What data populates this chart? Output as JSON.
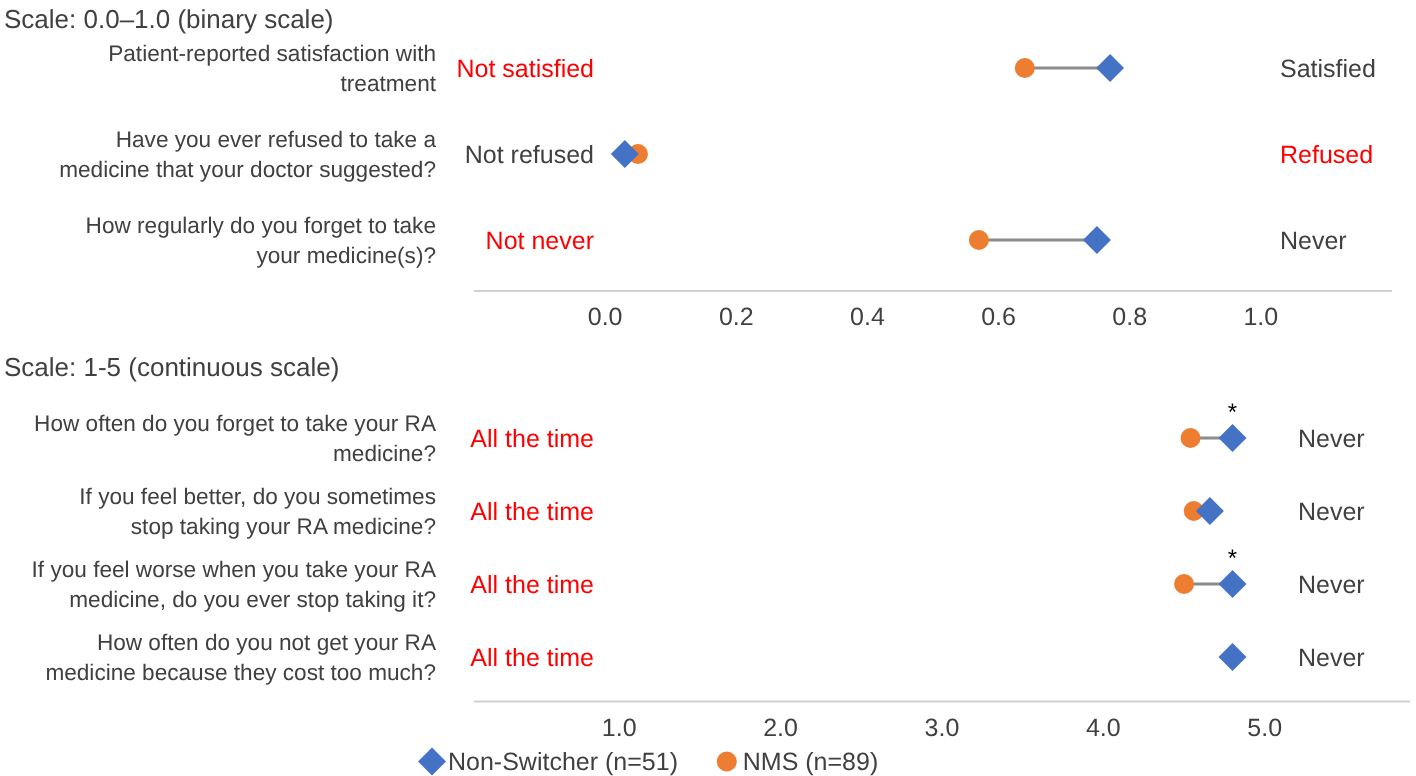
{
  "chart_data": [
    {
      "type": "scatter",
      "orientation": "horizontal",
      "title": "Scale: 0.0–1.0 (binary scale)",
      "categories": [
        "Patient-reported satisfaction with treatment",
        "Have you ever refused to take a medicine that your doctor suggested?",
        "How regularly do you forget to take your medicine(s)?"
      ],
      "series": [
        {
          "color": "#4472c4",
          "marker": "diamond",
          "values": [
            0.77,
            0.03,
            0.75
          ]
        },
        {
          "color": "#ed7d31",
          "marker": "circle",
          "values": [
            0.64,
            0.05,
            0.57
          ]
        }
      ],
      "xlim": [
        -0.2,
        1.2
      ],
      "xticks": [
        {
          "value": 0,
          "label": "0.0"
        },
        {
          "value": 0.2,
          "label": "0.2"
        },
        {
          "value": 0.4,
          "label": "0.4"
        },
        {
          "value": 0.6,
          "label": "0.6"
        },
        {
          "value": 0.8,
          "label": "0.8"
        },
        {
          "value": 1,
          "label": "1.0"
        }
      ],
      "annotations": [
        "Not satisfied",
        "Satisfied",
        "Not refused",
        "Refused",
        "Not never",
        "Never"
      ]
    },
    {
      "type": "scatter",
      "orientation": "horizontal",
      "title": "Scale: 1-5 (continuous scale)",
      "categories": [
        "How often do you forget to take your RA medicine?",
        "If you feel better, do you sometimes stop taking your RA medicine?",
        "If you feel worse when you take your RA medicine, do you ever stop taking it?",
        "How often do you not get your RA medicine because they cost too much?"
      ],
      "series": [
        {
          "name": "Non-Switcher (n=51)",
          "color": "#4472c4",
          "marker": "diamond",
          "values": [
            4.8,
            4.66,
            4.8,
            4.8
          ]
        },
        {
          "name": "NMS (n=89)",
          "color": "#ed7d31",
          "marker": "circle",
          "values": [
            4.54,
            4.56,
            4.5,
            null
          ]
        }
      ],
      "xlim": [
        0.1,
        5.9
      ],
      "xticks": [
        {
          "value": 1,
          "label": "1.0"
        },
        {
          "value": 2,
          "label": "2.0"
        },
        {
          "value": 3,
          "label": "3.0"
        },
        {
          "value": 4,
          "label": "4.0"
        },
        {
          "value": 5,
          "label": "5.0"
        }
      ],
      "legend": "bottom",
      "annotations": [
        {
          "text": "*",
          "x": 4.8,
          "y": "How often do you forget to take your RA medicine?"
        },
        {
          "text": "*",
          "x": 4.8,
          "y": "If you feel worse when you take your RA medicine, do you ever stop taking it?"
        },
        "All the time",
        "Never",
        "All the time",
        "Never",
        "All the time",
        "Never",
        "All the time",
        "Never"
      ]
    }
  ]
}
